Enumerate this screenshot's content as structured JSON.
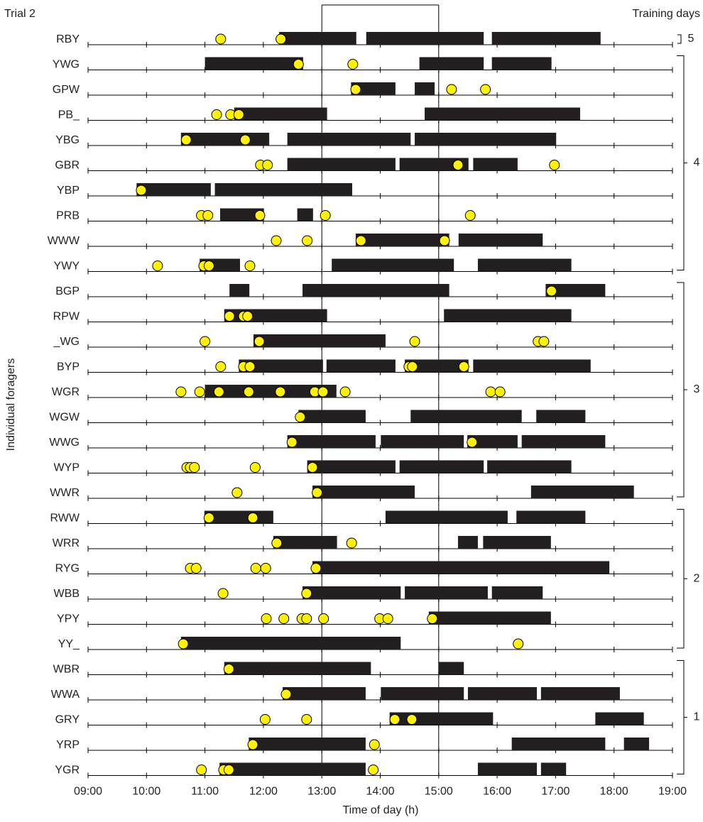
{
  "chart_data": {
    "type": "timeline",
    "title": "Trial 2",
    "x_label": "Time of day (h)",
    "y_label": "Individual foragers",
    "xlim": [
      9,
      19
    ],
    "xticks": [
      {
        "value": 9,
        "label": "09:00"
      },
      {
        "value": 10,
        "label": "10:00"
      },
      {
        "value": 11,
        "label": "11:00"
      },
      {
        "value": 12,
        "label": "12:00"
      },
      {
        "value": 13,
        "label": "13:00"
      },
      {
        "value": 14,
        "label": "14:00"
      },
      {
        "value": 15,
        "label": "15:00"
      },
      {
        "value": 16,
        "label": "16:00"
      },
      {
        "value": 17,
        "label": "17:00"
      },
      {
        "value": 18,
        "label": "18:00"
      },
      {
        "value": 19,
        "label": "19:00"
      }
    ],
    "highlight": [
      13,
      15
    ],
    "bar_color": "#231f20",
    "dot_color": "#fff200",
    "rows": [
      {
        "label": "RBY",
        "bars": [
          [
            12.27,
            13.59
          ],
          [
            13.76,
            15.77
          ],
          [
            15.91,
            17.77
          ]
        ],
        "visits": [
          11.27,
          12.3
        ]
      },
      {
        "label": "YWG",
        "bars": [
          [
            11.0,
            12.68
          ],
          [
            14.67,
            15.77
          ],
          [
            15.91,
            16.93
          ]
        ],
        "visits": [
          12.6,
          13.53
        ]
      },
      {
        "label": "GPW",
        "bars": [
          [
            13.5,
            14.26
          ],
          [
            14.59,
            14.93
          ]
        ],
        "visits": [
          13.58,
          15.22,
          15.8
        ]
      },
      {
        "label": "PB_",
        "bars": [
          [
            11.5,
            13.09
          ],
          [
            14.76,
            17.42
          ]
        ],
        "visits": [
          11.2,
          11.44,
          11.58
        ]
      },
      {
        "label": "YBG",
        "bars": [
          [
            10.59,
            12.1
          ],
          [
            12.41,
            14.52
          ],
          [
            14.59,
            17.01
          ]
        ],
        "visits": [
          10.68,
          11.69
        ]
      },
      {
        "label": "GBR",
        "bars": [
          [
            12.41,
            14.26
          ],
          [
            14.33,
            15.51
          ],
          [
            15.59,
            16.35
          ]
        ],
        "visits": [
          11.95,
          12.07,
          15.33,
          16.98
        ]
      },
      {
        "label": "YBP",
        "bars": [
          [
            9.83,
            11.1
          ],
          [
            11.17,
            13.52
          ]
        ],
        "visits": [
          9.91
        ]
      },
      {
        "label": "PRB",
        "bars": [
          [
            11.26,
            12.01
          ],
          [
            12.58,
            12.85
          ]
        ],
        "visits": [
          10.94,
          11.05,
          11.94,
          13.06,
          15.54
        ]
      },
      {
        "label": "WWW",
        "bars": [
          [
            13.58,
            15.18
          ],
          [
            15.34,
            16.78
          ]
        ],
        "visits": [
          12.22,
          12.75,
          13.67,
          15.1
        ]
      },
      {
        "label": "YWY",
        "bars": [
          [
            10.91,
            11.6
          ],
          [
            13.17,
            15.26
          ],
          [
            15.67,
            17.27
          ]
        ],
        "visits": [
          10.19,
          10.98,
          11.07,
          11.77
        ]
      },
      {
        "label": "BGP",
        "bars": [
          [
            11.42,
            11.76
          ],
          [
            12.67,
            15.18
          ],
          [
            16.83,
            17.85
          ]
        ],
        "visits": [
          16.93
        ]
      },
      {
        "label": "RPW",
        "bars": [
          [
            11.33,
            13.09
          ],
          [
            15.09,
            17.27
          ]
        ],
        "visits": [
          11.42,
          11.66,
          11.73
        ]
      },
      {
        "label": "_WG",
        "bars": [
          [
            11.83,
            14.09
          ]
        ],
        "visits": [
          11.0,
          11.93,
          14.59,
          16.7,
          16.8
        ]
      },
      {
        "label": "BYP",
        "bars": [
          [
            11.58,
            13.02
          ],
          [
            13.08,
            14.26
          ],
          [
            14.42,
            15.51
          ],
          [
            15.59,
            17.6
          ]
        ],
        "visits": [
          11.27,
          11.66,
          11.77,
          14.49,
          14.55,
          15.43
        ]
      },
      {
        "label": "WGR",
        "bars": [
          [
            11.0,
            13.25
          ]
        ],
        "visits": [
          10.59,
          10.91,
          11.24,
          11.75,
          12.29,
          12.88,
          13.02,
          13.4,
          15.89,
          16.05
        ]
      },
      {
        "label": "WGW",
        "bars": [
          [
            12.6,
            13.75
          ],
          [
            14.52,
            16.42
          ],
          [
            16.67,
            17.51
          ]
        ],
        "visits": [
          12.63
        ]
      },
      {
        "label": "WWG",
        "bars": [
          [
            12.41,
            13.92
          ],
          [
            14.01,
            15.43
          ],
          [
            15.49,
            16.35
          ],
          [
            16.42,
            17.85
          ]
        ],
        "visits": [
          12.49,
          15.57
        ]
      },
      {
        "label": "WYP",
        "bars": [
          [
            12.75,
            14.26
          ],
          [
            14.33,
            15.77
          ],
          [
            15.83,
            17.27
          ]
        ],
        "visits": [
          10.69,
          10.75,
          10.82,
          11.86,
          12.84
        ]
      },
      {
        "label": "WWR",
        "bars": [
          [
            12.84,
            14.59
          ],
          [
            16.58,
            18.34
          ]
        ],
        "visits": [
          11.55,
          12.92
        ]
      },
      {
        "label": "RWW",
        "bars": [
          [
            10.99,
            12.17
          ],
          [
            14.09,
            16.18
          ],
          [
            16.33,
            17.51
          ]
        ],
        "visits": [
          11.07,
          11.82
        ]
      },
      {
        "label": "WRR",
        "bars": [
          [
            12.17,
            13.26
          ],
          [
            15.33,
            15.67
          ],
          [
            15.76,
            16.92
          ]
        ],
        "visits": [
          12.23,
          13.51
        ]
      },
      {
        "label": "RYG",
        "bars": [
          [
            12.84,
            17.92
          ]
        ],
        "visits": [
          10.75,
          10.85,
          11.87,
          12.04,
          12.9
        ]
      },
      {
        "label": "WBB",
        "bars": [
          [
            12.67,
            14.35
          ],
          [
            14.42,
            15.84
          ],
          [
            15.91,
            16.78
          ]
        ],
        "visits": [
          11.31,
          12.74
        ]
      },
      {
        "label": "YPY",
        "bars": [
          [
            14.83,
            16.92
          ]
        ],
        "visits": [
          12.05,
          12.35,
          12.66,
          12.74,
          13.03,
          13.99,
          14.13,
          14.89
        ]
      },
      {
        "label": "YY_",
        "bars": [
          [
            10.59,
            14.35
          ]
        ],
        "visits": [
          10.63,
          16.36
        ]
      },
      {
        "label": "WBR",
        "bars": [
          [
            11.33,
            13.84
          ],
          [
            15.0,
            15.43
          ]
        ],
        "visits": [
          11.41
        ]
      },
      {
        "label": "WWA",
        "bars": [
          [
            12.33,
            13.75
          ],
          [
            14.01,
            15.43
          ],
          [
            15.5,
            16.68
          ],
          [
            16.75,
            18.1
          ]
        ],
        "visits": [
          12.39
        ]
      },
      {
        "label": "GRY",
        "bars": [
          [
            14.16,
            15.93
          ],
          [
            17.68,
            18.51
          ]
        ],
        "visits": [
          12.03,
          12.74,
          14.25,
          14.54
        ]
      },
      {
        "label": "YRP",
        "bars": [
          [
            11.75,
            13.75
          ],
          [
            16.25,
            17.85
          ],
          [
            18.17,
            18.6
          ]
        ],
        "visits": [
          11.82,
          13.9
        ]
      },
      {
        "label": "YGR",
        "bars": [
          [
            11.25,
            13.75
          ],
          [
            15.67,
            16.68
          ],
          [
            16.75,
            17.18
          ]
        ],
        "visits": [
          10.94,
          11.32,
          11.41,
          13.88
        ]
      }
    ],
    "training_days": {
      "label": "Training days",
      "groups": [
        {
          "day": 5,
          "rows": 1
        },
        {
          "day": 4,
          "rows": 9
        },
        {
          "day": 3,
          "rows": 9
        },
        {
          "day": 2,
          "rows": 6
        },
        {
          "day": 1,
          "rows": 5
        }
      ]
    }
  }
}
